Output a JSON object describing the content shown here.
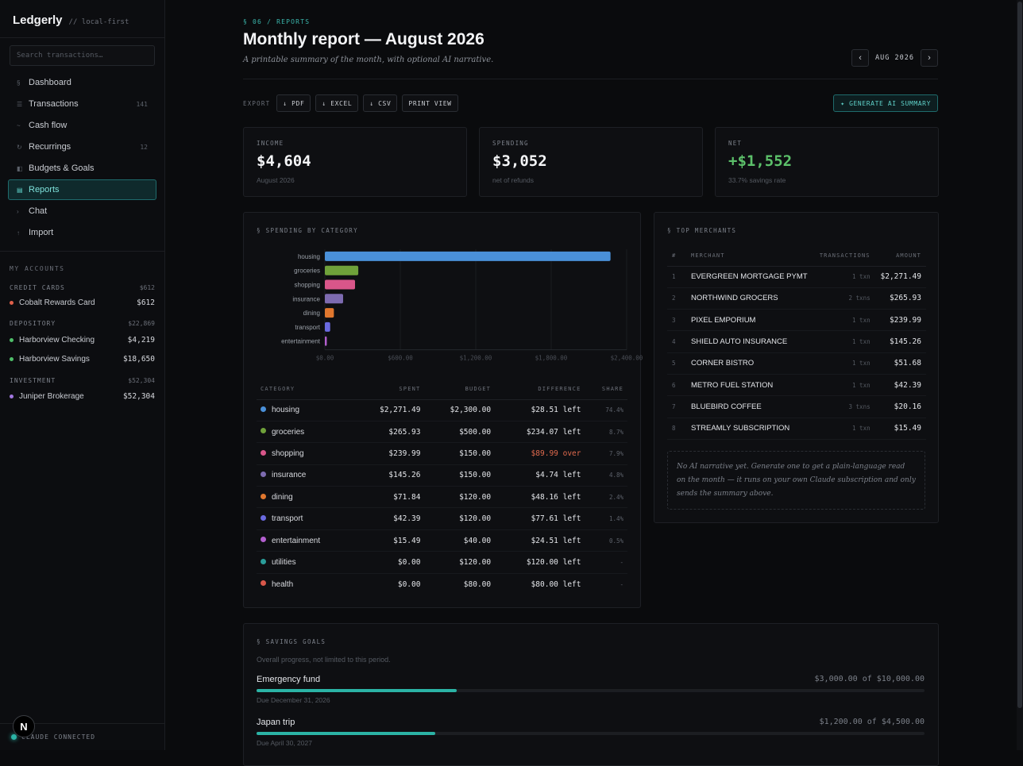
{
  "app": {
    "name": "Ledgerly",
    "tagline": "// local-first"
  },
  "search": {
    "placeholder": "Search transactions…"
  },
  "nav": [
    {
      "icon": "§",
      "label": "Dashboard",
      "count": "",
      "active": false
    },
    {
      "icon": "☰",
      "label": "Transactions",
      "count": "141",
      "active": false
    },
    {
      "icon": "~",
      "label": "Cash flow",
      "count": "",
      "active": false
    },
    {
      "icon": "↻",
      "label": "Recurrings",
      "count": "12",
      "active": false
    },
    {
      "icon": "◧",
      "label": "Budgets & Goals",
      "count": "",
      "active": false
    },
    {
      "icon": "▤",
      "label": "Reports",
      "count": "",
      "active": true
    },
    {
      "icon": "›",
      "label": "Chat",
      "count": "",
      "active": false
    },
    {
      "icon": "↑",
      "label": "Import",
      "count": "",
      "active": false
    }
  ],
  "accounts": {
    "title": "MY ACCOUNTS",
    "groups": [
      {
        "name": "CREDIT CARDS",
        "total": "$612",
        "items": [
          {
            "name": "Cobalt Rewards Card",
            "amount": "$612",
            "color": "#e0604a"
          }
        ]
      },
      {
        "name": "DEPOSITORY",
        "total": "$22,869",
        "items": [
          {
            "name": "Harborview Checking",
            "amount": "$4,219",
            "color": "#4fbf6a"
          },
          {
            "name": "Harborview Savings",
            "amount": "$18,650",
            "color": "#4fbf6a"
          }
        ]
      },
      {
        "name": "INVESTMENT",
        "total": "$52,304",
        "items": [
          {
            "name": "Juniper Brokerage",
            "amount": "$52,304",
            "color": "#a277e0"
          }
        ]
      }
    ]
  },
  "status": {
    "text": "CLAUDE CONNECTED",
    "badge": "N"
  },
  "header": {
    "breadcrumb": "§ 06 / REPORTS",
    "title": "Monthly report — August 2026",
    "subtitle": "A printable summary of the month, with optional AI narrative.",
    "month": "AUG 2026",
    "prev": "‹",
    "next": "›"
  },
  "export": {
    "label": "EXPORT",
    "pdf": "↓ PDF",
    "excel": "↓ EXCEL",
    "csv": "↓ CSV",
    "print": "PRINT VIEW",
    "ai": "✦ GENERATE AI SUMMARY"
  },
  "kpis": {
    "income": {
      "label": "INCOME",
      "value": "$4,604",
      "sub": "August 2026"
    },
    "spending": {
      "label": "SPENDING",
      "value": "$3,052",
      "sub": "net of refunds"
    },
    "net": {
      "label": "NET",
      "value": "+$1,552",
      "sub": "33.7% savings rate"
    }
  },
  "spending_section": {
    "title": "§ SPENDING BY CATEGORY",
    "columns": {
      "category": "CATEGORY",
      "spent": "SPENT",
      "budget": "BUDGET",
      "difference": "DIFFERENCE",
      "share": "SHARE"
    },
    "rows": [
      {
        "category": "housing",
        "color": "#4a90d9",
        "spent": "$2,271.49",
        "budget": "$2,300.00",
        "difference": "$28.51 left",
        "over": false,
        "share": "74.4%"
      },
      {
        "category": "groceries",
        "color": "#6fa13a",
        "spent": "$265.93",
        "budget": "$500.00",
        "difference": "$234.07 left",
        "over": false,
        "share": "8.7%"
      },
      {
        "category": "shopping",
        "color": "#d9568a",
        "spent": "$239.99",
        "budget": "$150.00",
        "difference": "$89.99 over",
        "over": true,
        "share": "7.9%"
      },
      {
        "category": "insurance",
        "color": "#7d6bb0",
        "spent": "$145.26",
        "budget": "$150.00",
        "difference": "$4.74 left",
        "over": false,
        "share": "4.8%"
      },
      {
        "category": "dining",
        "color": "#e0772e",
        "spent": "$71.84",
        "budget": "$120.00",
        "difference": "$48.16 left",
        "over": false,
        "share": "2.4%"
      },
      {
        "category": "transport",
        "color": "#6a6ae0",
        "spent": "$42.39",
        "budget": "$120.00",
        "difference": "$77.61 left",
        "over": false,
        "share": "1.4%"
      },
      {
        "category": "entertainment",
        "color": "#b35fcf",
        "spent": "$15.49",
        "budget": "$40.00",
        "difference": "$24.51 left",
        "over": false,
        "share": "0.5%"
      },
      {
        "category": "utilities",
        "color": "#2a9d9a",
        "spent": "$0.00",
        "budget": "$120.00",
        "difference": "$120.00 left",
        "over": false,
        "share": "-"
      },
      {
        "category": "health",
        "color": "#d9574a",
        "spent": "$0.00",
        "budget": "$80.00",
        "difference": "$80.00 left",
        "over": false,
        "share": "-"
      }
    ]
  },
  "chart_data": {
    "type": "bar",
    "orientation": "horizontal",
    "categories": [
      "housing",
      "groceries",
      "shopping",
      "insurance",
      "dining",
      "transport",
      "entertainment"
    ],
    "values": [
      2271.49,
      265.93,
      239.99,
      145.26,
      71.84,
      42.39,
      15.49
    ],
    "colors": [
      "#4a90d9",
      "#6fa13a",
      "#d9568a",
      "#7d6bb0",
      "#e0772e",
      "#6a6ae0",
      "#b35fcf"
    ],
    "xlim": [
      0,
      2400
    ],
    "xticks": [
      "$0.00",
      "$600.00",
      "$1,200.00",
      "$1,800.00",
      "$2,400.00"
    ],
    "xtick_values": [
      0,
      600,
      1200,
      1800,
      2400
    ],
    "grid": true,
    "title": "",
    "xlabel": "",
    "ylabel": ""
  },
  "merchants": {
    "title": "§ TOP MERCHANTS",
    "columns": {
      "idx": "#",
      "merchant": "MERCHANT",
      "transactions": "TRANSACTIONS",
      "amount": "AMOUNT"
    },
    "rows": [
      {
        "idx": "1",
        "merchant": "EVERGREEN MORTGAGE PYMT",
        "txns": "1 txn",
        "amount": "$2,271.49"
      },
      {
        "idx": "2",
        "merchant": "NORTHWIND GROCERS",
        "txns": "2 txns",
        "amount": "$265.93"
      },
      {
        "idx": "3",
        "merchant": "PIXEL EMPORIUM",
        "txns": "1 txn",
        "amount": "$239.99"
      },
      {
        "idx": "4",
        "merchant": "SHIELD AUTO INSURANCE",
        "txns": "1 txn",
        "amount": "$145.26"
      },
      {
        "idx": "5",
        "merchant": "CORNER BISTRO",
        "txns": "1 txn",
        "amount": "$51.68"
      },
      {
        "idx": "6",
        "merchant": "METRO FUEL STATION",
        "txns": "1 txn",
        "amount": "$42.39"
      },
      {
        "idx": "7",
        "merchant": "BLUEBIRD COFFEE",
        "txns": "3 txns",
        "amount": "$20.16"
      },
      {
        "idx": "8",
        "merchant": "STREAMLY SUBSCRIPTION",
        "txns": "1 txn",
        "amount": "$15.49"
      }
    ],
    "narrative": "No AI narrative yet. Generate one to get a plain-language read on the month — it runs on your own Claude subscription and only sends the summary above."
  },
  "goals": {
    "title": "§ SAVINGS GOALS",
    "subtitle": "Overall progress, not limited to this period.",
    "items": [
      {
        "name": "Emergency fund",
        "amount": "$3,000.00 of $10,000.00",
        "due": "Due December 31, 2026",
        "progress": 0.3
      },
      {
        "name": "Japan trip",
        "amount": "$1,200.00 of $4,500.00",
        "due": "Due April 30, 2027",
        "progress": 0.267
      }
    ]
  }
}
